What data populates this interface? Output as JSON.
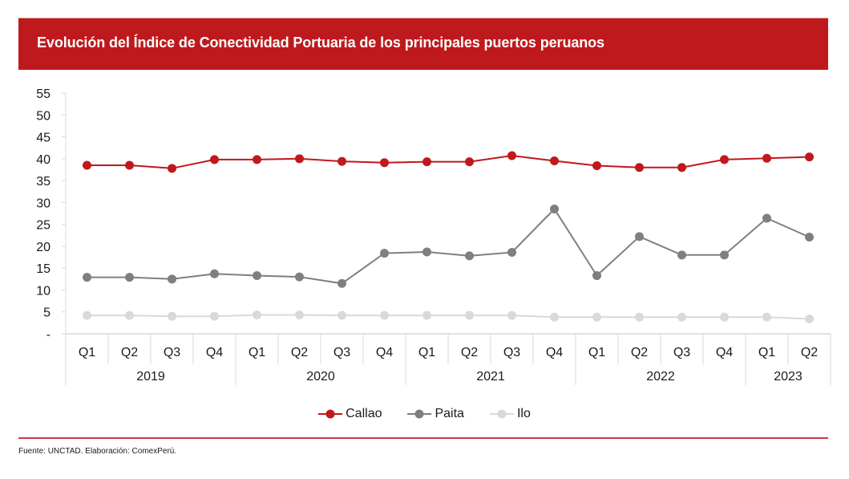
{
  "title": "Evolución del Índice de Conectividad Portuaria de los principales puertos peruanos",
  "source": "Fuente: UNCTAD. Elaboración: ComexPerú.",
  "chart_data": {
    "type": "line",
    "title": "Evolución del Índice de Conectividad Portuaria de los principales puertos peruanos",
    "xlabel": "",
    "ylabel": "",
    "ylim": [
      0,
      55
    ],
    "yticks": [
      0,
      5,
      10,
      15,
      20,
      25,
      30,
      35,
      40,
      45,
      50,
      55
    ],
    "ytick_labels": [
      "-",
      "5",
      "10",
      "15",
      "20",
      "25",
      "30",
      "35",
      "40",
      "45",
      "50",
      "55"
    ],
    "categories": [
      "Q1",
      "Q2",
      "Q3",
      "Q4",
      "Q1",
      "Q2",
      "Q3",
      "Q4",
      "Q1",
      "Q2",
      "Q3",
      "Q4",
      "Q1",
      "Q2",
      "Q3",
      "Q4",
      "Q1",
      "Q2"
    ],
    "groups": [
      {
        "label": "2019",
        "count": 4
      },
      {
        "label": "2020",
        "count": 4
      },
      {
        "label": "2021",
        "count": 4
      },
      {
        "label": "2022",
        "count": 4
      },
      {
        "label": "2023",
        "count": 2
      }
    ],
    "grid": false,
    "legend_position": "bottom",
    "series": [
      {
        "name": "Callao",
        "color": "#c0181d",
        "values": [
          38.5,
          38.5,
          37.8,
          39.8,
          39.8,
          40.0,
          39.4,
          39.1,
          39.3,
          39.3,
          40.7,
          39.5,
          38.4,
          38.0,
          38.0,
          39.8,
          40.1,
          40.4
        ]
      },
      {
        "name": "Paita",
        "color": "#7f7f7f",
        "values": [
          12.9,
          12.9,
          12.5,
          13.7,
          13.3,
          13.0,
          11.5,
          18.4,
          18.7,
          17.8,
          18.6,
          28.5,
          13.3,
          22.2,
          18.0,
          18.0,
          26.4,
          22.1
        ]
      },
      {
        "name": "Ilo",
        "color": "#d9d9d9",
        "values": [
          4.2,
          4.2,
          4.0,
          4.0,
          4.3,
          4.3,
          4.2,
          4.2,
          4.2,
          4.2,
          4.2,
          3.8,
          3.8,
          3.8,
          3.8,
          3.8,
          3.8,
          3.4
        ]
      }
    ]
  }
}
